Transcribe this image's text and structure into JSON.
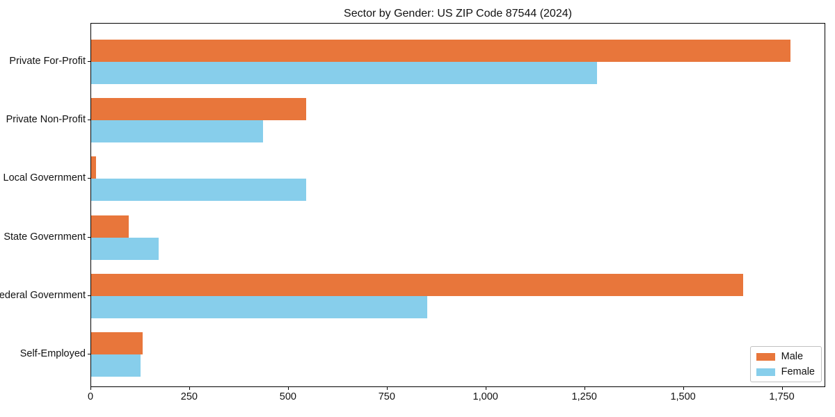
{
  "chart_data": {
    "type": "bar",
    "orientation": "horizontal",
    "title": "Sector by Gender: US ZIP Code 87544 (2024)",
    "categories": [
      "Private For-Profit",
      "Private Non-Profit",
      "Local Government",
      "State Government",
      "Federal Government",
      "Self-Employed"
    ],
    "series": [
      {
        "name": "Male",
        "color": "#e8763b",
        "values": [
          1770,
          545,
          13,
          95,
          1650,
          130
        ]
      },
      {
        "name": "Female",
        "color": "#87ceeb",
        "values": [
          1280,
          435,
          545,
          170,
          850,
          125
        ]
      }
    ],
    "xlabel": "",
    "ylabel": "",
    "xlim": [
      0,
      1860
    ],
    "xticks": [
      0,
      250,
      500,
      750,
      1000,
      1250,
      1500,
      1750
    ],
    "xtick_labels": [
      "0",
      "250",
      "500",
      "750",
      "1,000",
      "1,250",
      "1,500",
      "1,750"
    ],
    "grid": false,
    "legend_position": "lower right",
    "axis_color": "#000000",
    "background_color": "#ffffff"
  }
}
